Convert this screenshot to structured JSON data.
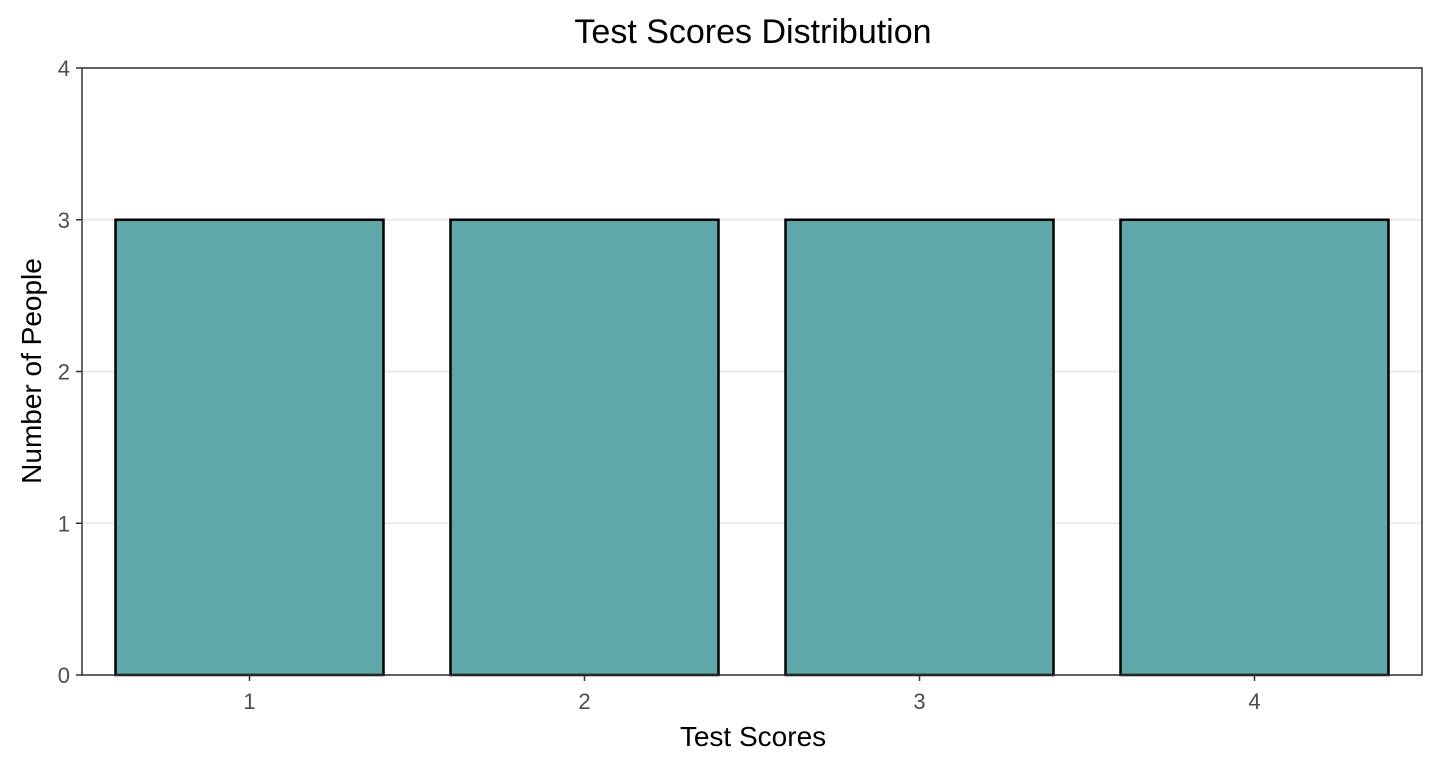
{
  "chart_data": {
    "type": "bar",
    "title": "Test Scores Distribution",
    "xlabel": "Test Scores",
    "ylabel": "Number of People",
    "categories": [
      "1",
      "2",
      "3",
      "4"
    ],
    "values": [
      3,
      3,
      3,
      3
    ],
    "ylim": [
      0,
      4
    ],
    "yticks": [
      "0",
      "1",
      "2",
      "3",
      "4"
    ],
    "grid": true,
    "colors": {
      "bar_fill": "#5fa8a9",
      "bar_stroke": "#000000",
      "grid": "#ebebeb",
      "panel_border": "#333333",
      "tick_text": "#4d4d4d"
    }
  }
}
